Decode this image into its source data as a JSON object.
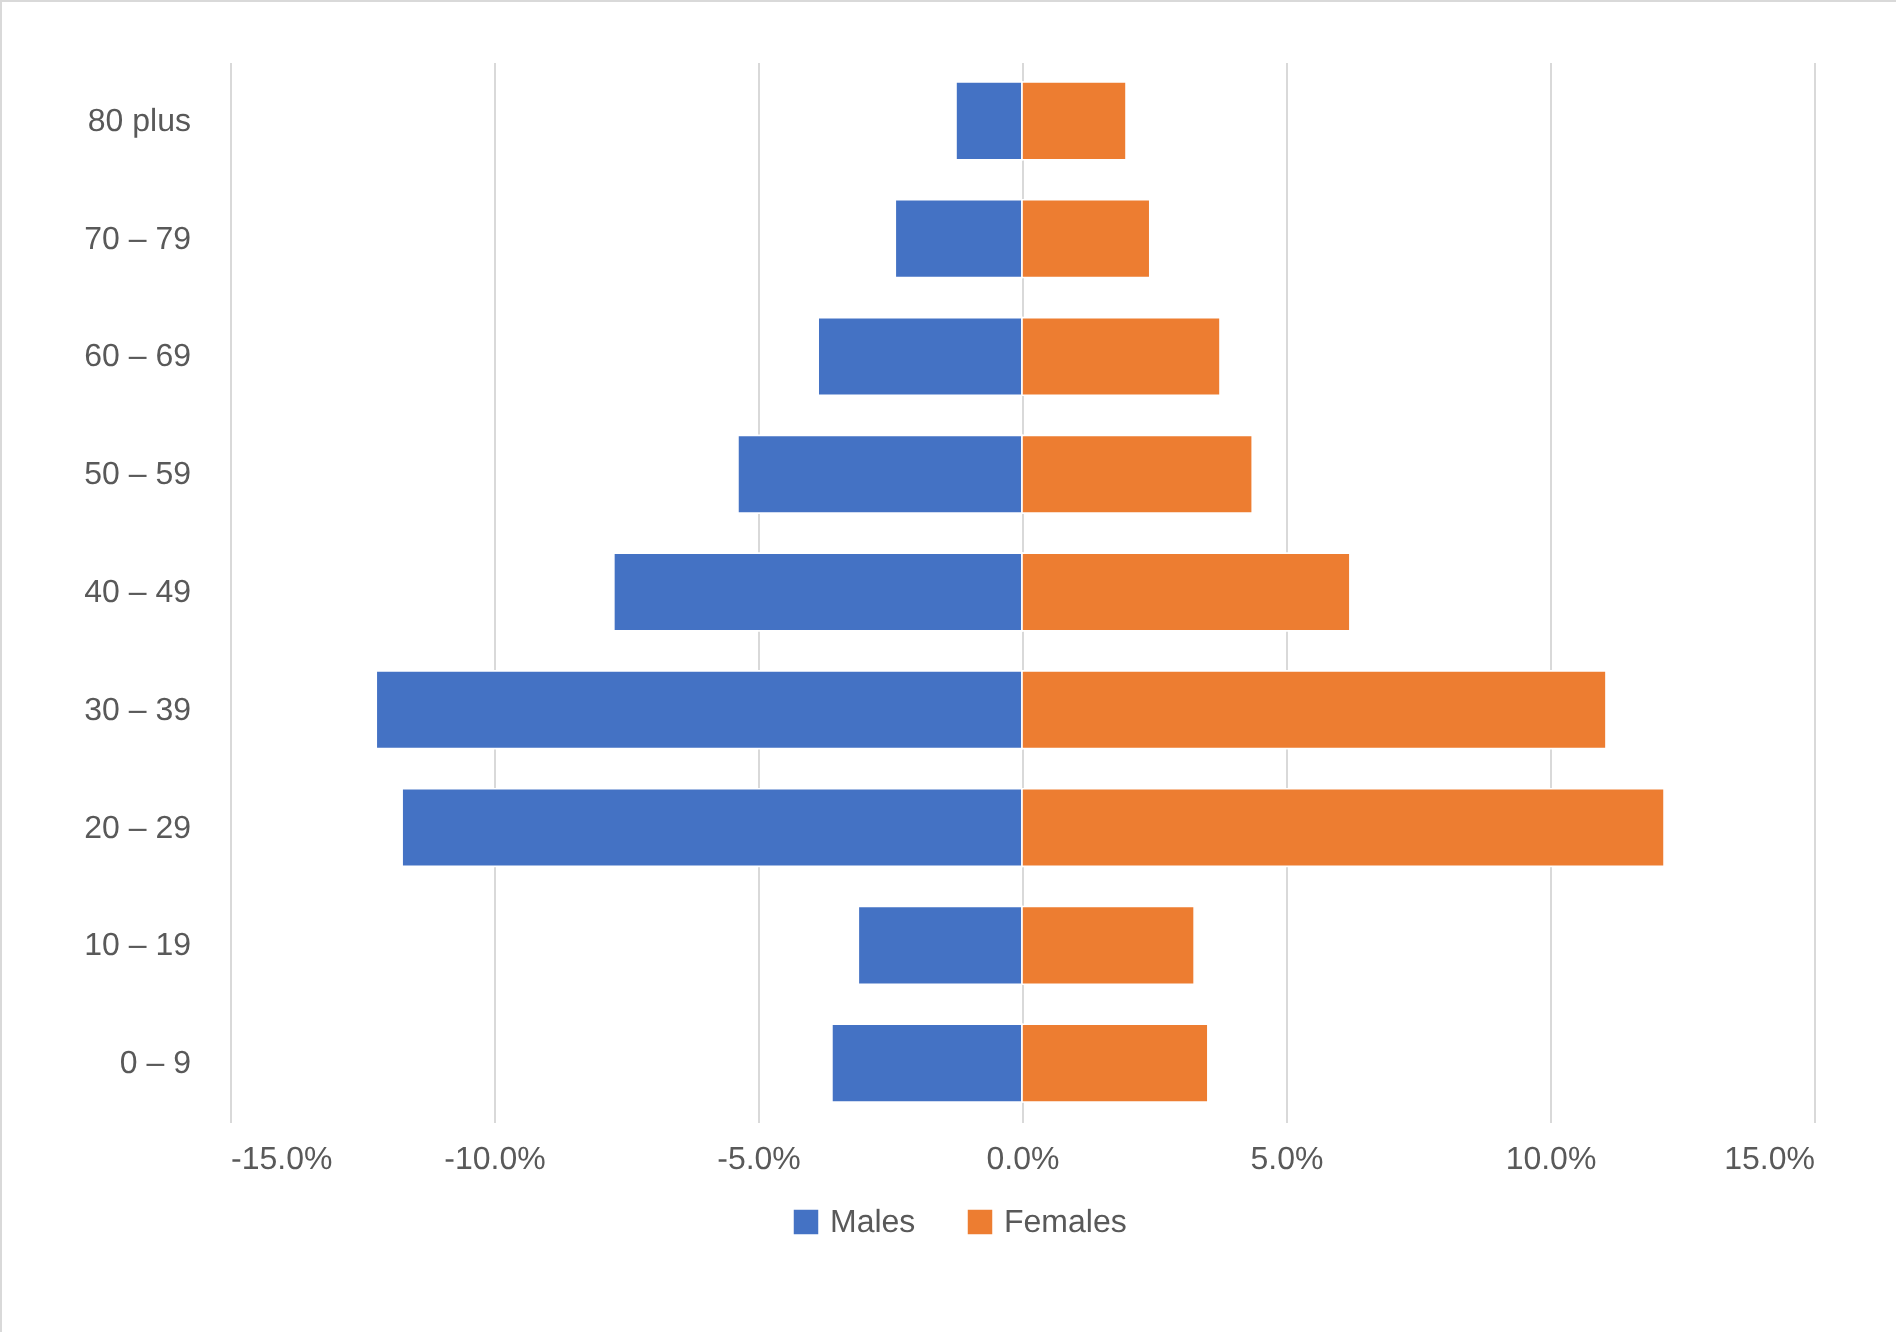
{
  "chart_data": {
    "type": "bar",
    "orientation": "horizontal",
    "stacked": true,
    "categories": [
      "80 plus",
      "70 – 79",
      "60 – 69",
      "50 – 59",
      "40 – 49",
      "30 – 39",
      "20 – 29",
      "10 – 19",
      "0 – 9"
    ],
    "series": [
      {
        "name": "Males",
        "color": "#4472c4",
        "values": [
          -1.25,
          -2.4,
          -3.86,
          -5.38,
          -7.73,
          -12.23,
          -11.74,
          -3.1,
          -3.6
        ]
      },
      {
        "name": "Females",
        "color": "#ed7d31",
        "values": [
          1.97,
          2.42,
          3.75,
          4.36,
          6.21,
          11.06,
          12.16,
          3.26,
          3.52
        ]
      }
    ],
    "xlim": [
      -15,
      15
    ],
    "xticks": [
      {
        "value": -15,
        "label": "-15.0%"
      },
      {
        "value": -10,
        "label": "-10.0%"
      },
      {
        "value": -5,
        "label": "-5.0%"
      },
      {
        "value": 0,
        "label": "0.0%"
      },
      {
        "value": 5,
        "label": "5.0%"
      },
      {
        "value": 10,
        "label": "10.0%"
      },
      {
        "value": 15,
        "label": "15.0%"
      }
    ],
    "grid": "x",
    "legend": "bottom"
  }
}
